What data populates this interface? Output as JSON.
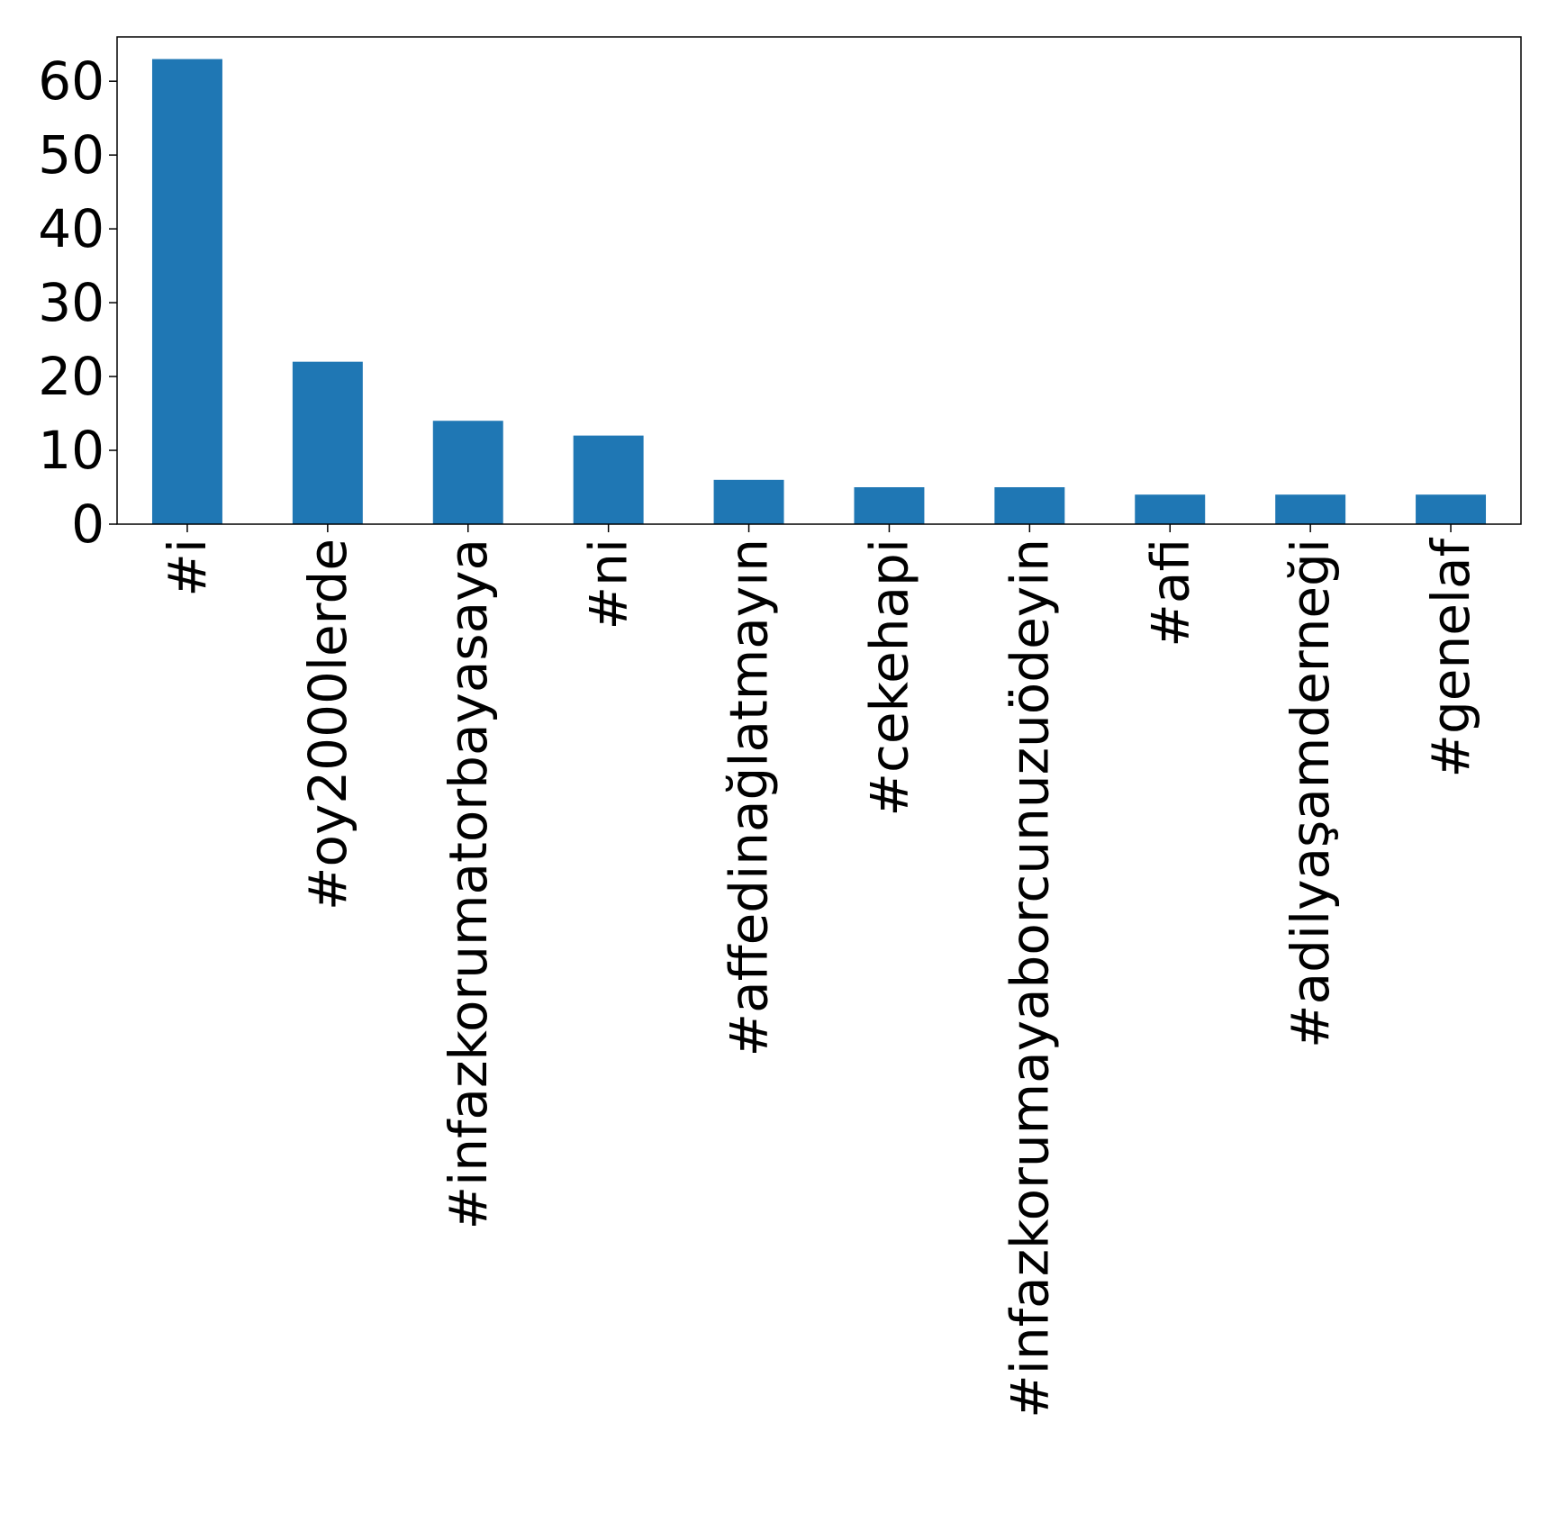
{
  "chart_data": {
    "type": "bar",
    "title": "",
    "xlabel": "",
    "ylabel": "",
    "categories": [
      "#i",
      "#oy2000lerde",
      "#infazkorumatorbayasaya",
      "#ni",
      "#affedinağlatmayın",
      "#cekehapi",
      "#infazkorumayaborcunuzuödeyin",
      "#afi",
      "#adilyaşamderneği",
      "#genelaf"
    ],
    "values": [
      63,
      22,
      14,
      12,
      6,
      5,
      5,
      4,
      4,
      4
    ],
    "ylim": [
      0,
      66
    ],
    "yticks": [
      0,
      10,
      20,
      30,
      40,
      50,
      60
    ],
    "grid": false,
    "legend": "none",
    "bar_color": "#1f77b4",
    "axis_color": "#000000"
  }
}
